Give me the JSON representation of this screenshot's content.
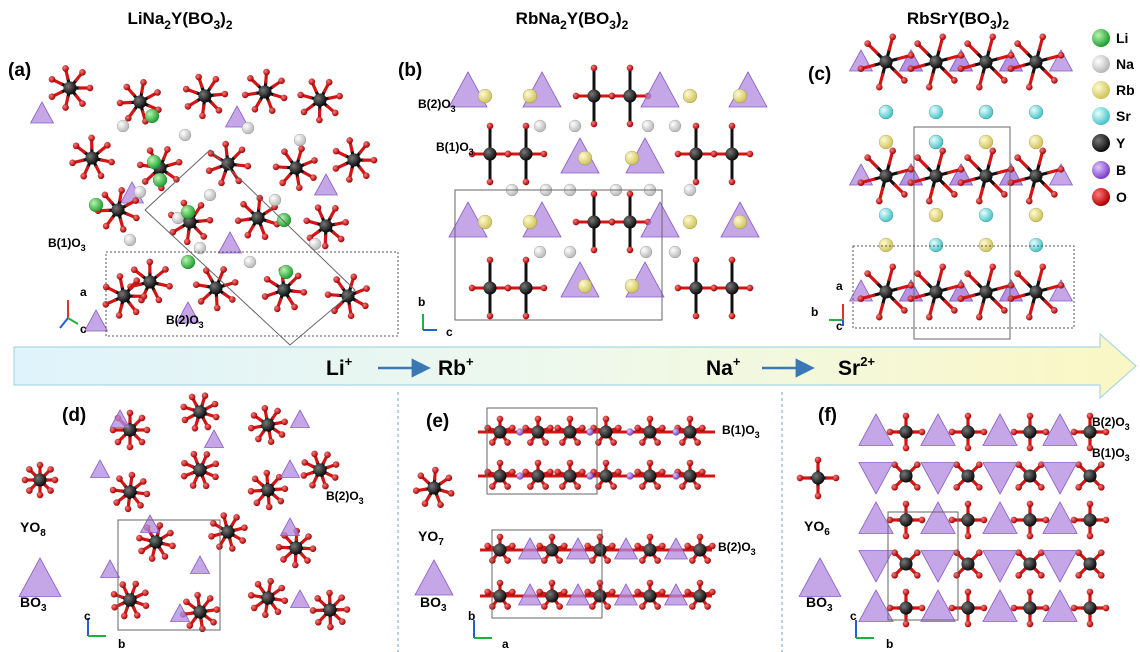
{
  "titles": {
    "a": {
      "pre": "LiNa",
      "s1": "2",
      "mid": "Y(BO",
      "s2": "3",
      "post": ")",
      "s3": "2"
    },
    "b": {
      "pre": "RbNa",
      "s1": "2",
      "mid": "Y(BO",
      "s2": "3",
      "post": ")",
      "s3": "2"
    },
    "c": {
      "pre": "RbSrY(BO",
      "s1": "3",
      "mid": ")",
      "s2": "2"
    }
  },
  "panel_labels": [
    "(a)",
    "(b)",
    "(c)",
    "(d)",
    "(e)",
    "(f)"
  ],
  "site_labels": {
    "b1o3": {
      "main": "B(1)O",
      "sub": "3"
    },
    "b2o3": {
      "main": "B(2)O",
      "sub": "3"
    }
  },
  "legend": [
    {
      "label": "Li",
      "color": "#3fc24a"
    },
    {
      "label": "Na",
      "color": "#d6d6d6"
    },
    {
      "label": "Rb",
      "color": "#e3dc86"
    },
    {
      "label": "Sr",
      "color": "#7fd9d9"
    },
    {
      "label": "Y",
      "color": "#1a1a1a"
    },
    {
      "label": "B",
      "color": "#9b63d6"
    },
    {
      "label": "O",
      "color": "#d61d1d"
    }
  ],
  "substitution": {
    "step1_from": "Li",
    "step1_from_sup": "+",
    "step1_to": "Rb",
    "step1_to_sup": "+",
    "step2_from": "Na",
    "step2_from_sup": "+",
    "step2_to": "Sr",
    "step2_to_sup": "2+"
  },
  "polyhedra": {
    "yo8": {
      "main": "YO",
      "sub": "8"
    },
    "yo7": {
      "main": "YO",
      "sub": "7"
    },
    "yo6": {
      "main": "YO",
      "sub": "6"
    },
    "bo3": {
      "main": "BO",
      "sub": "3"
    }
  },
  "axes": {
    "a": [
      "a",
      "c"
    ],
    "b": [
      "b",
      "c"
    ],
    "c": [
      "a",
      "b",
      "c"
    ],
    "d": [
      "c",
      "b"
    ],
    "e": [
      "b",
      "a"
    ],
    "f": [
      "c",
      "b"
    ]
  }
}
